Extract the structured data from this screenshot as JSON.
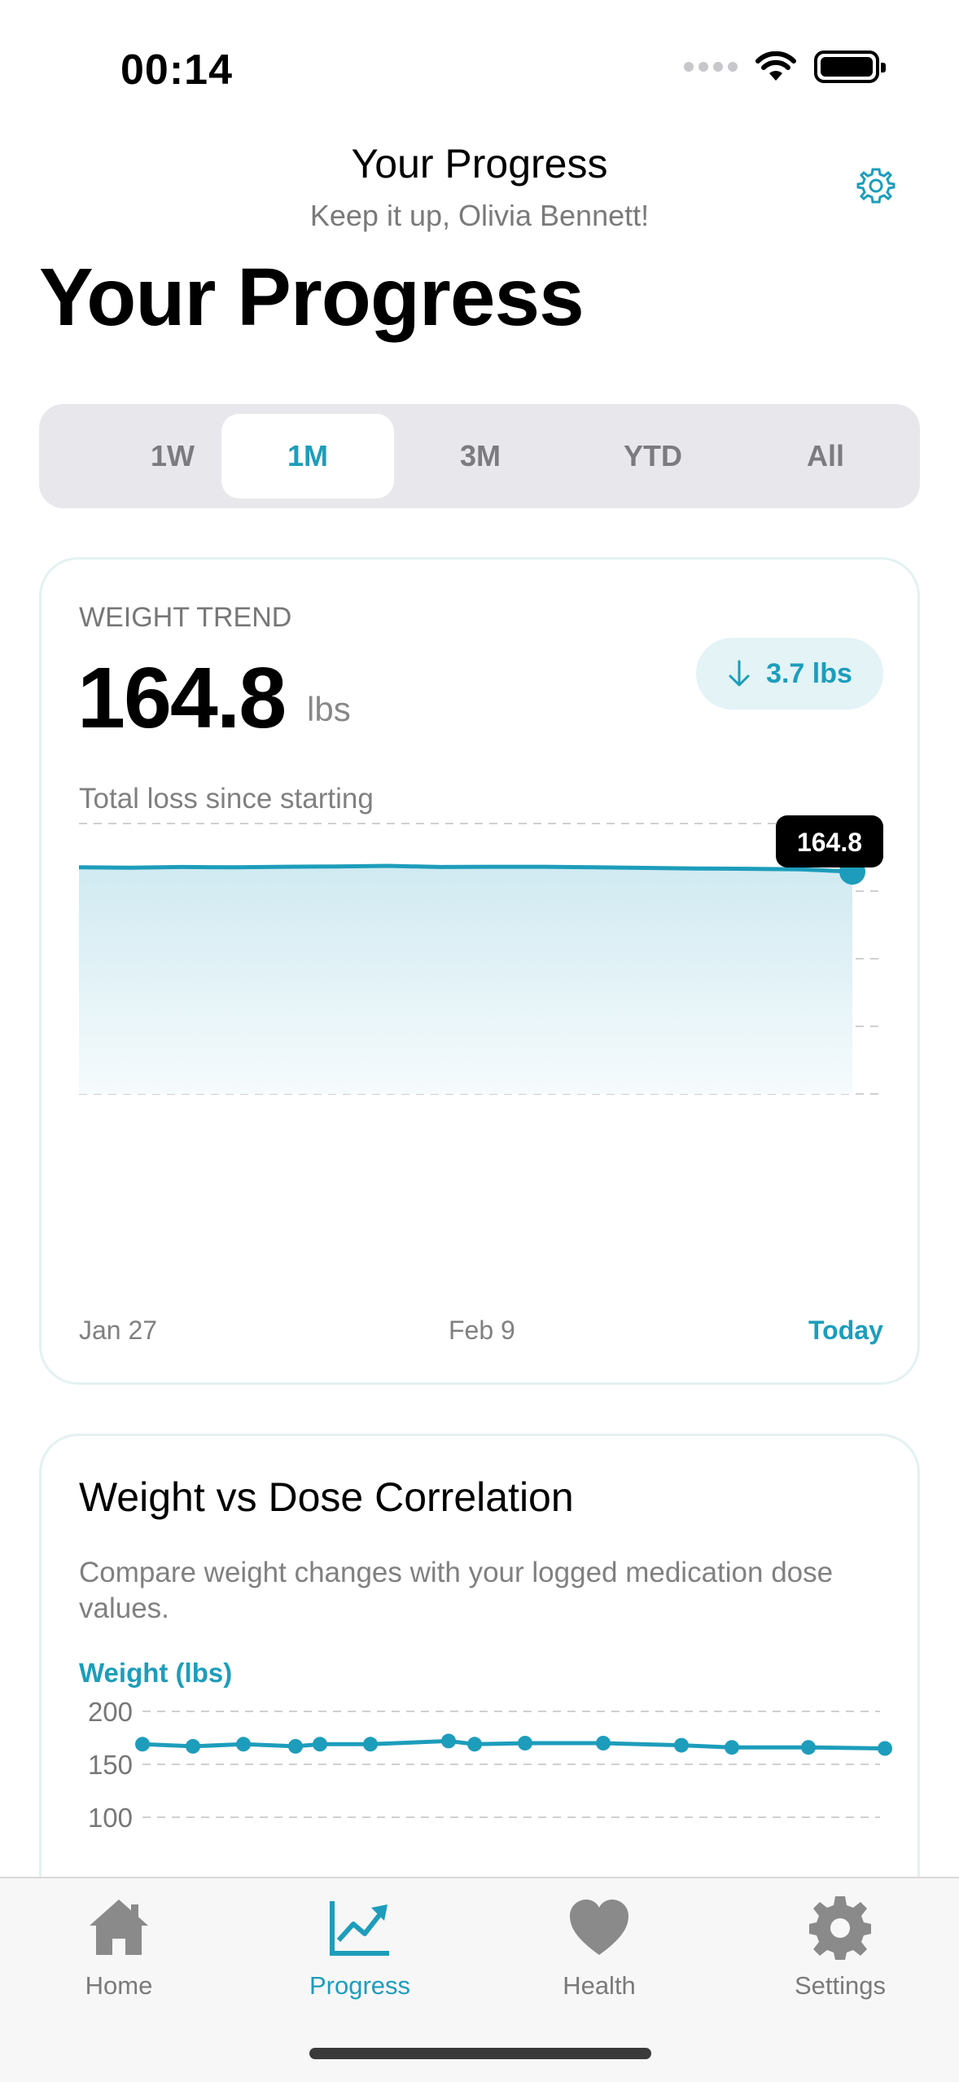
{
  "status_bar": {
    "time": "00:14"
  },
  "header": {
    "title": "Your Progress",
    "subtitle": "Keep it up, Olivia Bennett!",
    "large_title": "Your Progress"
  },
  "range_tabs": [
    {
      "label": "1W",
      "active": false
    },
    {
      "label": "1M",
      "active": true
    },
    {
      "label": "3M",
      "active": false
    },
    {
      "label": "YTD",
      "active": false
    },
    {
      "label": "All",
      "active": false
    }
  ],
  "weight_card": {
    "label": "WEIGHT TREND",
    "value": "164.8",
    "unit": "lbs",
    "loss_badge": "3.7 lbs",
    "caption": "Total loss since starting",
    "tooltip": "164.8",
    "x_labels": {
      "start": "Jan 27",
      "mid": "Feb 9",
      "end": "Today"
    }
  },
  "correlation_card": {
    "title": "Weight vs Dose Correlation",
    "description": "Compare weight changes with your logged medication dose values.",
    "axis_title": "Weight (lbs)",
    "y_ticks": [
      "200",
      "150",
      "100"
    ]
  },
  "tabs": [
    {
      "label": "Home",
      "icon": "house-icon",
      "active": false
    },
    {
      "label": "Progress",
      "icon": "chart-trend-icon",
      "active": true
    },
    {
      "label": "Health",
      "icon": "heart-icon",
      "active": false
    },
    {
      "label": "Settings",
      "icon": "gear-icon",
      "active": false
    }
  ],
  "colors": {
    "accent": "#1d9dbb",
    "area_fill": "#d4ecf2",
    "grid": "#d0d0d0"
  },
  "chart_data": [
    {
      "type": "area",
      "title": "WEIGHT TREND",
      "x_labels": [
        "Jan 27",
        "Feb 9",
        "Today"
      ],
      "y": [
        168.5,
        168.4,
        168.6,
        168.5,
        168.7,
        168.8,
        169.0,
        168.6,
        168.7,
        168.7,
        168.5,
        168.3,
        168.1,
        168.0,
        167.8,
        164.8
      ],
      "grid": true
    },
    {
      "type": "line",
      "title": "Weight vs Dose Correlation",
      "ylabel": "Weight (lbs)",
      "ylim": [
        100,
        200
      ],
      "y_ticks": [
        200,
        150,
        100
      ],
      "y": [
        169,
        167,
        169,
        167,
        169,
        169,
        172,
        169,
        170,
        170,
        168,
        166,
        166,
        165
      ],
      "grid": true
    }
  ]
}
